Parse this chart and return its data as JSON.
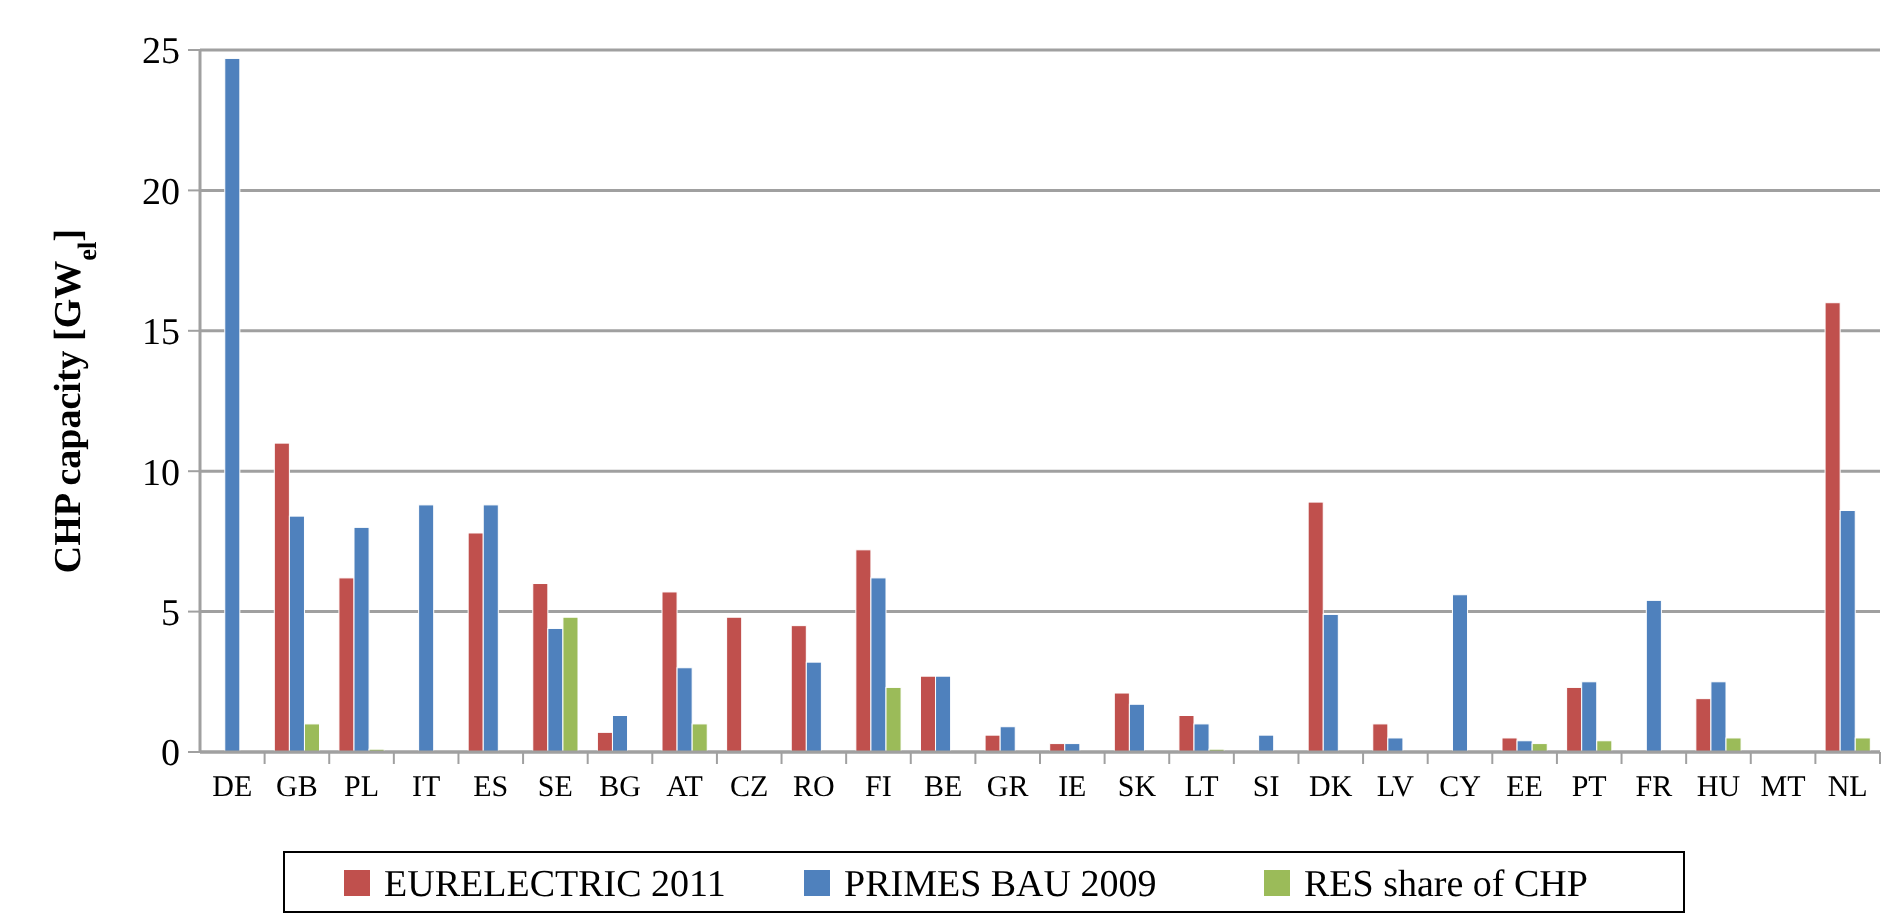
{
  "chart_data": {
    "type": "bar",
    "ylabel": "CHP capacity [GW$_{el}$]",
    "categories": [
      "DE",
      "GB",
      "PL",
      "IT",
      "ES",
      "SE",
      "BG",
      "AT",
      "CZ",
      "RO",
      "FI",
      "BE",
      "GR",
      "IE",
      "SK",
      "LT",
      "SI",
      "DK",
      "LV",
      "CY",
      "EE",
      "PT",
      "FR",
      "HU",
      "MT",
      "NL"
    ],
    "series": [
      {
        "name": "EURELECTRIC 2011",
        "color": "#c0504d",
        "values": [
          null,
          11.0,
          6.2,
          null,
          7.8,
          6.0,
          0.7,
          5.7,
          4.8,
          4.5,
          7.2,
          2.7,
          0.6,
          0.3,
          2.1,
          1.3,
          null,
          8.9,
          1.0,
          null,
          0.5,
          2.3,
          null,
          1.9,
          null,
          16.0
        ]
      },
      {
        "name": "PRIMES BAU 2009",
        "color": "#4f81bd",
        "values": [
          24.7,
          8.4,
          8.0,
          8.8,
          8.8,
          4.4,
          1.3,
          3.0,
          null,
          3.2,
          6.2,
          2.7,
          0.9,
          0.3,
          1.7,
          1.0,
          0.6,
          4.9,
          0.5,
          5.6,
          0.4,
          2.5,
          5.4,
          2.5,
          null,
          8.6
        ]
      },
      {
        "name": "RES share of CHP",
        "color": "#9bbb59",
        "values": [
          null,
          1.0,
          0.1,
          null,
          null,
          4.8,
          null,
          1.0,
          null,
          null,
          2.3,
          null,
          null,
          null,
          null,
          0.1,
          null,
          null,
          null,
          null,
          0.3,
          0.4,
          null,
          0.5,
          null,
          0.5
        ]
      }
    ],
    "ylim": [
      0,
      25
    ],
    "yticks": [
      0,
      5,
      10,
      15,
      20,
      25
    ],
    "grid": "y",
    "legend": "bottom"
  }
}
